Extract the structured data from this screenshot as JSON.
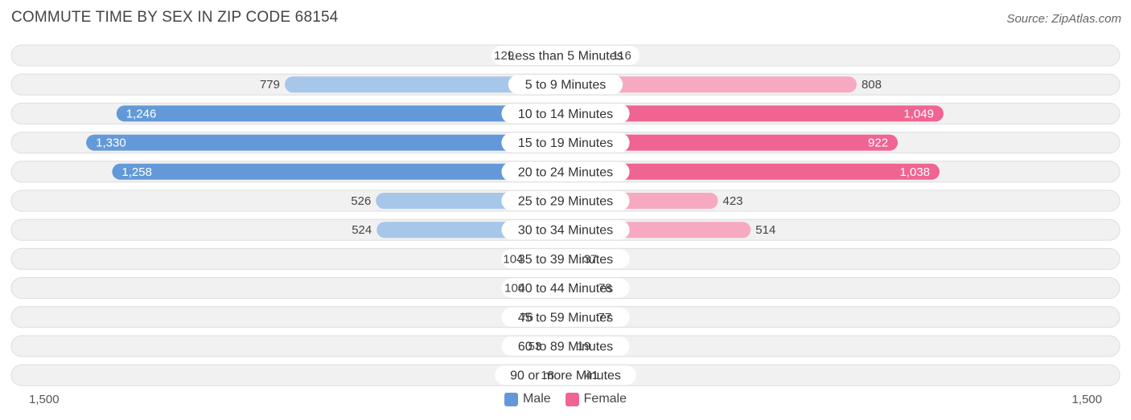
{
  "chart_data": {
    "type": "bar",
    "orientation": "horizontal-diverging",
    "title": "COMMUTE TIME BY SEX IN ZIP CODE 68154",
    "source": "Source: ZipAtlas.com",
    "categories": [
      "Less than 5 Minutes",
      "5 to 9 Minutes",
      "10 to 14 Minutes",
      "15 to 19 Minutes",
      "20 to 24 Minutes",
      "25 to 29 Minutes",
      "30 to 34 Minutes",
      "35 to 39 Minutes",
      "40 to 44 Minutes",
      "45 to 59 Minutes",
      "60 to 89 Minutes",
      "90 or more Minutes"
    ],
    "series": [
      {
        "name": "Male",
        "values": [
          129,
          779,
          1246,
          1330,
          1258,
          526,
          524,
          104,
          100,
          76,
          53,
          18
        ],
        "labels": [
          "129",
          "779",
          "1,246",
          "1,330",
          "1,258",
          "526",
          "524",
          "104",
          "100",
          "76",
          "53",
          "18"
        ]
      },
      {
        "name": "Female",
        "values": [
          116,
          808,
          1049,
          922,
          1038,
          423,
          514,
          37,
          78,
          77,
          19,
          41
        ],
        "labels": [
          "116",
          "808",
          "1,049",
          "922",
          "1,038",
          "423",
          "514",
          "37",
          "78",
          "77",
          "19",
          "41"
        ]
      }
    ],
    "axis": {
      "min_label": "1,500",
      "max_label": "1,500",
      "max": 1500
    },
    "legend_placement": "bottom-center",
    "colors": {
      "male_strong": "#6399d8",
      "male_light": "#a6c6ea",
      "female_strong": "#f06491",
      "female_light": "#f7a9c2",
      "row_bg": "#f1f1f1",
      "row_border": "#dddddd"
    }
  }
}
